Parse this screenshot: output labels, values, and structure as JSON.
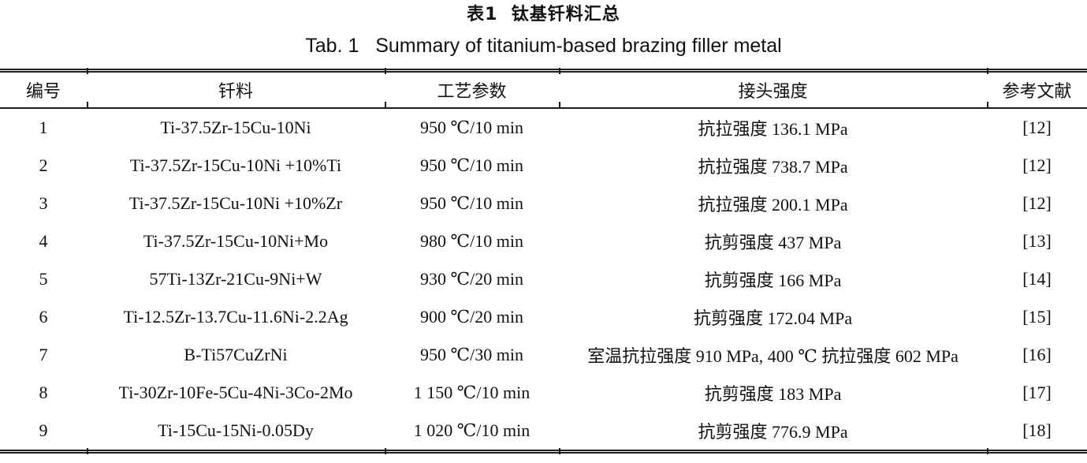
{
  "titles": {
    "zh": "表1  钛基钎料汇总",
    "en": "Tab. 1   Summary of titanium-based brazing filler metal"
  },
  "table": {
    "headers": [
      "编号",
      "钎料",
      "工艺参数",
      "接头强度",
      "参考文献"
    ],
    "rows": [
      {
        "no": "1",
        "filler": "Ti-37.5Zr-15Cu-10Ni",
        "process": "950 ℃/10 min",
        "strength": "抗拉强度 136.1 MPa",
        "ref": "[12]"
      },
      {
        "no": "2",
        "filler": "Ti-37.5Zr-15Cu-10Ni +10%Ti",
        "process": "950 ℃/10 min",
        "strength": "抗拉强度 738.7 MPa",
        "ref": "[12]"
      },
      {
        "no": "3",
        "filler": "Ti-37.5Zr-15Cu-10Ni +10%Zr",
        "process": "950 ℃/10 min",
        "strength": "抗拉强度 200.1 MPa",
        "ref": "[12]"
      },
      {
        "no": "4",
        "filler": "Ti-37.5Zr-15Cu-10Ni+Mo",
        "process": "980 ℃/10 min",
        "strength": "抗剪强度 437 MPa",
        "ref": "[13]"
      },
      {
        "no": "5",
        "filler": "57Ti-13Zr-21Cu-9Ni+W",
        "process": "930 ℃/20 min",
        "strength": "抗剪强度 166 MPa",
        "ref": "[14]"
      },
      {
        "no": "6",
        "filler": "Ti-12.5Zr-13.7Cu-11.6Ni-2.2Ag",
        "process": "900 ℃/20 min",
        "strength": "抗剪强度 172.04 MPa",
        "ref": "[15]"
      },
      {
        "no": "7",
        "filler": "B-Ti57CuZrNi",
        "process": "950 ℃/30 min",
        "strength": "室温抗拉强度 910 MPa, 400 ℃ 抗拉强度 602 MPa",
        "ref": "[16]"
      },
      {
        "no": "8",
        "filler": "Ti-30Zr-10Fe-5Cu-4Ni-3Co-2Mo",
        "process": "1 150 ℃/10 min",
        "strength": "抗剪强度 183 MPa",
        "ref": "[17]"
      },
      {
        "no": "9",
        "filler": "Ti-15Cu-15Ni-0.05Dy",
        "process": "1 020 ℃/10 min",
        "strength": "抗剪强度 776.9 MPa",
        "ref": "[18]"
      }
    ]
  },
  "colors": {
    "text": "#111111",
    "rule": "#1c1c1c",
    "background": "#ffffff"
  }
}
